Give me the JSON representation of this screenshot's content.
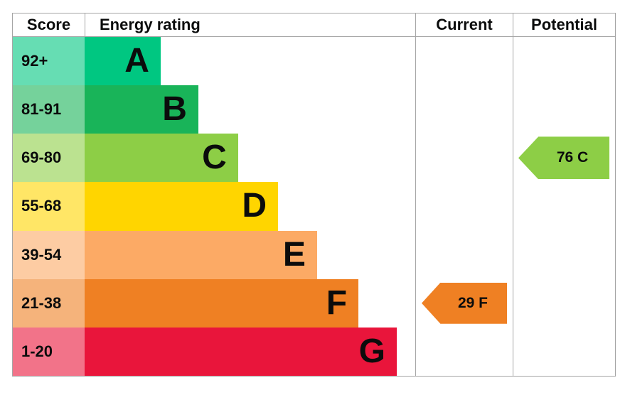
{
  "chart_data": {
    "type": "bar",
    "description": "EPC energy efficiency rating chart",
    "columns": [
      "Score",
      "Energy rating",
      "Current",
      "Potential"
    ],
    "bands": [
      {
        "score": "92+",
        "letter": "A",
        "color": "#00c781",
        "width_pct": 23.0
      },
      {
        "score": "81-91",
        "letter": "B",
        "color": "#19b459",
        "width_pct": 34.4
      },
      {
        "score": "69-80",
        "letter": "C",
        "color": "#8dce46",
        "width_pct": 46.4
      },
      {
        "score": "55-68",
        "letter": "D",
        "color": "#ffd500",
        "width_pct": 58.5
      },
      {
        "score": "39-54",
        "letter": "E",
        "color": "#fcaa65",
        "width_pct": 70.3
      },
      {
        "score": "21-38",
        "letter": "F",
        "color": "#ef8023",
        "width_pct": 82.8
      },
      {
        "score": "1-20",
        "letter": "G",
        "color": "#e9153b",
        "width_pct": 94.4
      }
    ],
    "markers": {
      "current": {
        "label": "29 F",
        "value": 29,
        "band": "F",
        "band_index": 5,
        "color": "#ef8023"
      },
      "potential": {
        "label": "76 C",
        "value": 76,
        "band": "C",
        "band_index": 2,
        "color": "#8dce46"
      }
    },
    "score_cell_alpha_hex": "99",
    "layout": {
      "grid": false,
      "legend": "none",
      "bands_count": 7
    }
  },
  "colors": {
    "border": "#a6a6a6",
    "text": "#0b0c0c",
    "background": "#ffffff"
  }
}
